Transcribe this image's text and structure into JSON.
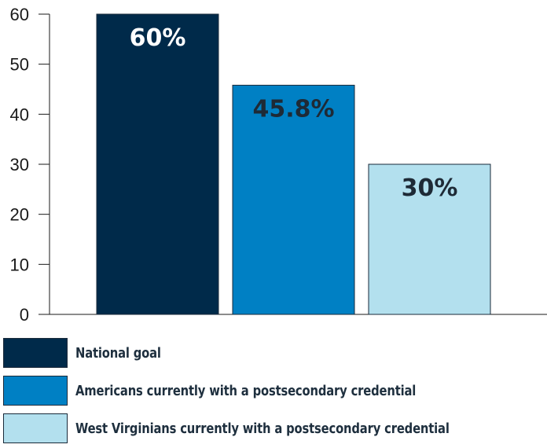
{
  "chart_data": {
    "type": "bar",
    "categories": [
      "National goal",
      "Americans currently with a postsecondary credential",
      "West Virginians currently with a postsecondary credential"
    ],
    "values": [
      60,
      45.8,
      30
    ],
    "value_labels": [
      "60%",
      "45.8%",
      "30%"
    ],
    "colors": [
      "#002a4a",
      "#0080c4",
      "#b3e0ee"
    ],
    "label_colors": [
      "#ffffff",
      "#1e2a36",
      "#1e2a36"
    ],
    "ylim": [
      0,
      60
    ],
    "yticks": [
      "0",
      "10",
      "20",
      "30",
      "40",
      "50",
      "60"
    ],
    "grid": false,
    "legend_position": "bottom"
  }
}
